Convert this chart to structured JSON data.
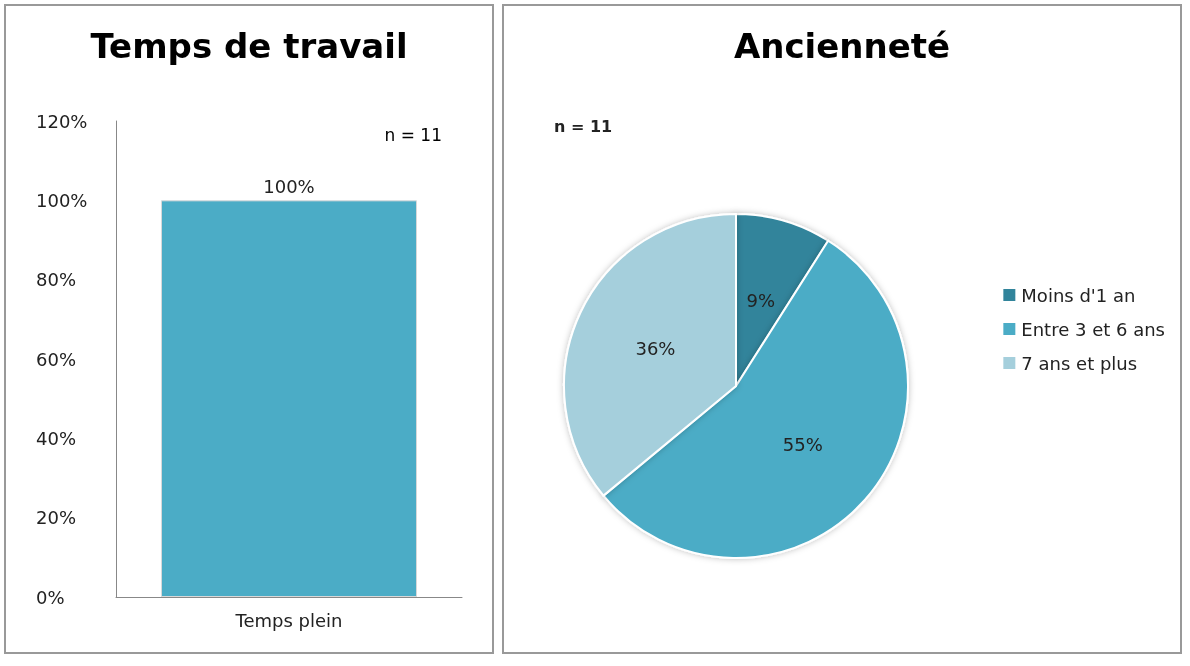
{
  "chart_data": [
    {
      "type": "bar",
      "title": "Temps de travail",
      "categories": [
        "Temps plein"
      ],
      "values": [
        100
      ],
      "value_labels": [
        "100%"
      ],
      "color": "#4bacc6",
      "ylim": [
        0,
        120
      ],
      "yticks": [
        {
          "value": 0,
          "label": "0%"
        },
        {
          "value": 20,
          "label": "20%"
        },
        {
          "value": 40,
          "label": "40%"
        },
        {
          "value": 60,
          "label": "60%"
        },
        {
          "value": 80,
          "label": "80%"
        },
        {
          "value": 100,
          "label": "100%"
        },
        {
          "value": 120,
          "label": "120%"
        }
      ],
      "annotations": [
        "n = 11"
      ],
      "legend": false,
      "grid": false
    },
    {
      "type": "pie",
      "title": "Ancienneté",
      "categories": [
        "Moins d'1 an",
        "Entre 3 et 6 ans",
        "7 ans et plus"
      ],
      "values": [
        9,
        55,
        36
      ],
      "colors": [
        "#31849b",
        "#4bacc6",
        "#a5cfdc"
      ],
      "value_labels": [
        "9%",
        "55%",
        "36%"
      ],
      "annotations": [
        "n = 11"
      ],
      "legend": "right"
    }
  ]
}
